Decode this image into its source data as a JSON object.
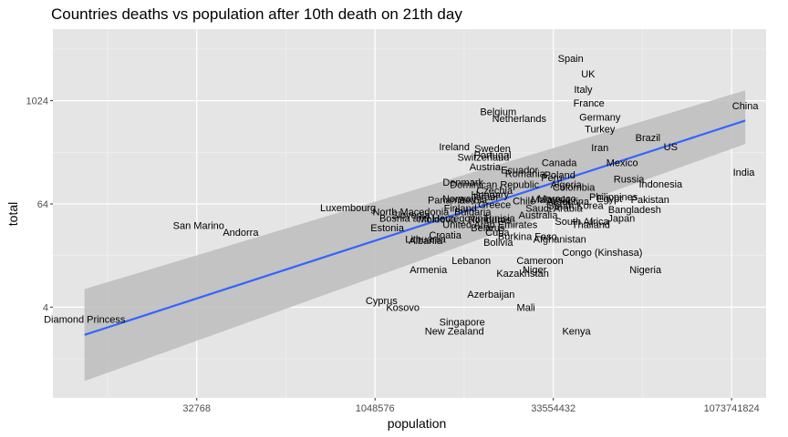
{
  "chart_data": {
    "type": "scatter",
    "title": "Countries deaths vs population after 10th death on 21th day",
    "xlabel": "population",
    "ylabel": "total",
    "x_scale": "log2",
    "y_scale": "log2",
    "xlim": [
      2000,
      2100000000
    ],
    "ylim": [
      0.35,
      7000
    ],
    "x_ticks": [
      32768,
      1048576,
      33554432,
      1073741824
    ],
    "y_ticks": [
      4,
      64,
      1024
    ],
    "x_tick_labels": [
      "32768",
      "1048576",
      "33554432",
      "1073741824"
    ],
    "y_tick_labels": [
      "4",
      "64",
      "1024"
    ],
    "grid": true,
    "background": "#e5e5e5",
    "trend": {
      "method": "linear regression on log scales with confidence band",
      "line_color": "#3366ff",
      "band_color": "#bdbdbd",
      "x": [
        3700,
        1400000000
      ],
      "y": [
        1.9,
        600
      ],
      "band_lower": [
        0.55,
        320
      ],
      "band_upper": [
        6.5,
        1350
      ]
    },
    "points": [
      {
        "label": "Spain",
        "x": 47000000,
        "y": 3200
      },
      {
        "label": "UK",
        "x": 66000000,
        "y": 2100
      },
      {
        "label": "Italy",
        "x": 60000000,
        "y": 1400
      },
      {
        "label": "France",
        "x": 67000000,
        "y": 960
      },
      {
        "label": "Germany",
        "x": 83000000,
        "y": 660
      },
      {
        "label": "Belgium",
        "x": 11500000,
        "y": 770
      },
      {
        "label": "Netherlands",
        "x": 17300000,
        "y": 640
      },
      {
        "label": "Turkey",
        "x": 83000000,
        "y": 480
      },
      {
        "label": "China",
        "x": 1400000000,
        "y": 900
      },
      {
        "label": "Brazil",
        "x": 211000000,
        "y": 380
      },
      {
        "label": "US",
        "x": 328000000,
        "y": 300
      },
      {
        "label": "Iran",
        "x": 83000000,
        "y": 290
      },
      {
        "label": "Ireland",
        "x": 4900000,
        "y": 300
      },
      {
        "label": "Sweden",
        "x": 10300000,
        "y": 285
      },
      {
        "label": "Portugal",
        "x": 10300000,
        "y": 240
      },
      {
        "label": "Switzerland",
        "x": 8600000,
        "y": 225
      },
      {
        "label": "Canada",
        "x": 37600000,
        "y": 195
      },
      {
        "label": "Mexico",
        "x": 128000000,
        "y": 195
      },
      {
        "label": "Austria",
        "x": 8900000,
        "y": 175
      },
      {
        "label": "Ecuador",
        "x": 17400000,
        "y": 160
      },
      {
        "label": "Romania",
        "x": 19400000,
        "y": 145
      },
      {
        "label": "Poland",
        "x": 38000000,
        "y": 140
      },
      {
        "label": "India",
        "x": 1360000000,
        "y": 150
      },
      {
        "label": "Peru",
        "x": 32500000,
        "y": 130
      },
      {
        "label": "Russia",
        "x": 146000000,
        "y": 125
      },
      {
        "label": "Denmark",
        "x": 5800000,
        "y": 115
      },
      {
        "label": "Dominican Republic",
        "x": 10700000,
        "y": 108
      },
      {
        "label": "Algeria",
        "x": 43000000,
        "y": 108
      },
      {
        "label": "Indonesia",
        "x": 270000000,
        "y": 110
      },
      {
        "label": "Colombia",
        "x": 50000000,
        "y": 100
      },
      {
        "label": "Czechia",
        "x": 10700000,
        "y": 92
      },
      {
        "label": "Hungary",
        "x": 9800000,
        "y": 83
      },
      {
        "label": "Israel",
        "x": 9000000,
        "y": 78
      },
      {
        "label": "Philippines",
        "x": 108000000,
        "y": 78
      },
      {
        "label": "Norway",
        "x": 5400000,
        "y": 74
      },
      {
        "label": "Morocco",
        "x": 36000000,
        "y": 74
      },
      {
        "label": "Egypt",
        "x": 100000000,
        "y": 74
      },
      {
        "label": "Panama",
        "x": 4200000,
        "y": 71
      },
      {
        "label": "Serbia",
        "x": 7000000,
        "y": 71
      },
      {
        "label": "Chile",
        "x": 19000000,
        "y": 70
      },
      {
        "label": "Malaysia",
        "x": 32000000,
        "y": 72
      },
      {
        "label": "Argentina",
        "x": 44500000,
        "y": 69
      },
      {
        "label": "Pakistan",
        "x": 220000000,
        "y": 72
      },
      {
        "label": "Greece",
        "x": 10700000,
        "y": 63
      },
      {
        "label": "South Korea",
        "x": 51700000,
        "y": 62
      },
      {
        "label": "Finland",
        "x": 5500000,
        "y": 57
      },
      {
        "label": "Saudi Arabia",
        "x": 34000000,
        "y": 57
      },
      {
        "label": "Luxembourg",
        "x": 620000,
        "y": 58
      },
      {
        "label": "Bangladesh",
        "x": 163000000,
        "y": 55
      },
      {
        "label": "North Macedonia",
        "x": 2100000,
        "y": 52
      },
      {
        "label": "Bulgaria",
        "x": 7000000,
        "y": 52
      },
      {
        "label": "Slovenia",
        "x": 2100000,
        "y": 48
      },
      {
        "label": "Australia",
        "x": 25000000,
        "y": 48
      },
      {
        "label": "Bosnia and Herzegovina",
        "x": 3300000,
        "y": 44
      },
      {
        "label": "Tunisia",
        "x": 11700000,
        "y": 44
      },
      {
        "label": "Moldova",
        "x": 3500000,
        "y": 43
      },
      {
        "label": "Honduras",
        "x": 9700000,
        "y": 42
      },
      {
        "label": "Japan",
        "x": 126000000,
        "y": 44
      },
      {
        "label": "South Africa",
        "x": 58500000,
        "y": 40
      },
      {
        "label": "Thailand",
        "x": 69600000,
        "y": 37
      },
      {
        "label": "United Arab Emirates",
        "x": 9800000,
        "y": 37
      },
      {
        "label": "San Marino",
        "x": 34000,
        "y": 36
      },
      {
        "label": "Estonia",
        "x": 1330000,
        "y": 34
      },
      {
        "label": "Belarus",
        "x": 9400000,
        "y": 34
      },
      {
        "label": "Andorra",
        "x": 77000,
        "y": 30
      },
      {
        "label": "Croatia",
        "x": 4100000,
        "y": 28
      },
      {
        "label": "Cuba",
        "x": 11300000,
        "y": 30
      },
      {
        "label": "Burkina Faso",
        "x": 20300000,
        "y": 27
      },
      {
        "label": "Lithuania",
        "x": 2800000,
        "y": 25
      },
      {
        "label": "Albania",
        "x": 2800000,
        "y": 24
      },
      {
        "label": "Bolivia",
        "x": 11500000,
        "y": 23
      },
      {
        "label": "Afghanistan",
        "x": 38000000,
        "y": 25
      },
      {
        "label": "Congo (Kinshasa)",
        "x": 87000000,
        "y": 17.5
      },
      {
        "label": "Lebanon",
        "x": 6800000,
        "y": 14
      },
      {
        "label": "Cameroon",
        "x": 25900000,
        "y": 14
      },
      {
        "label": "Armenia",
        "x": 2960000,
        "y": 11
      },
      {
        "label": "Niger",
        "x": 23300000,
        "y": 11
      },
      {
        "label": "Nigeria",
        "x": 201000000,
        "y": 11
      },
      {
        "label": "Kazakhstan",
        "x": 18500000,
        "y": 10
      },
      {
        "label": "Azerbaijan",
        "x": 10000000,
        "y": 5.7
      },
      {
        "label": "Cyprus",
        "x": 1190000,
        "y": 4.8
      },
      {
        "label": "Kosovo",
        "x": 1800000,
        "y": 4
      },
      {
        "label": "Mali",
        "x": 19700000,
        "y": 4
      },
      {
        "label": "Diamond Princess",
        "x": 3700,
        "y": 2.9
      },
      {
        "label": "Singapore",
        "x": 5700000,
        "y": 2.7
      },
      {
        "label": "New Zealand",
        "x": 4900000,
        "y": 2.1
      },
      {
        "label": "Kenya",
        "x": 52600000,
        "y": 2.1
      }
    ]
  }
}
